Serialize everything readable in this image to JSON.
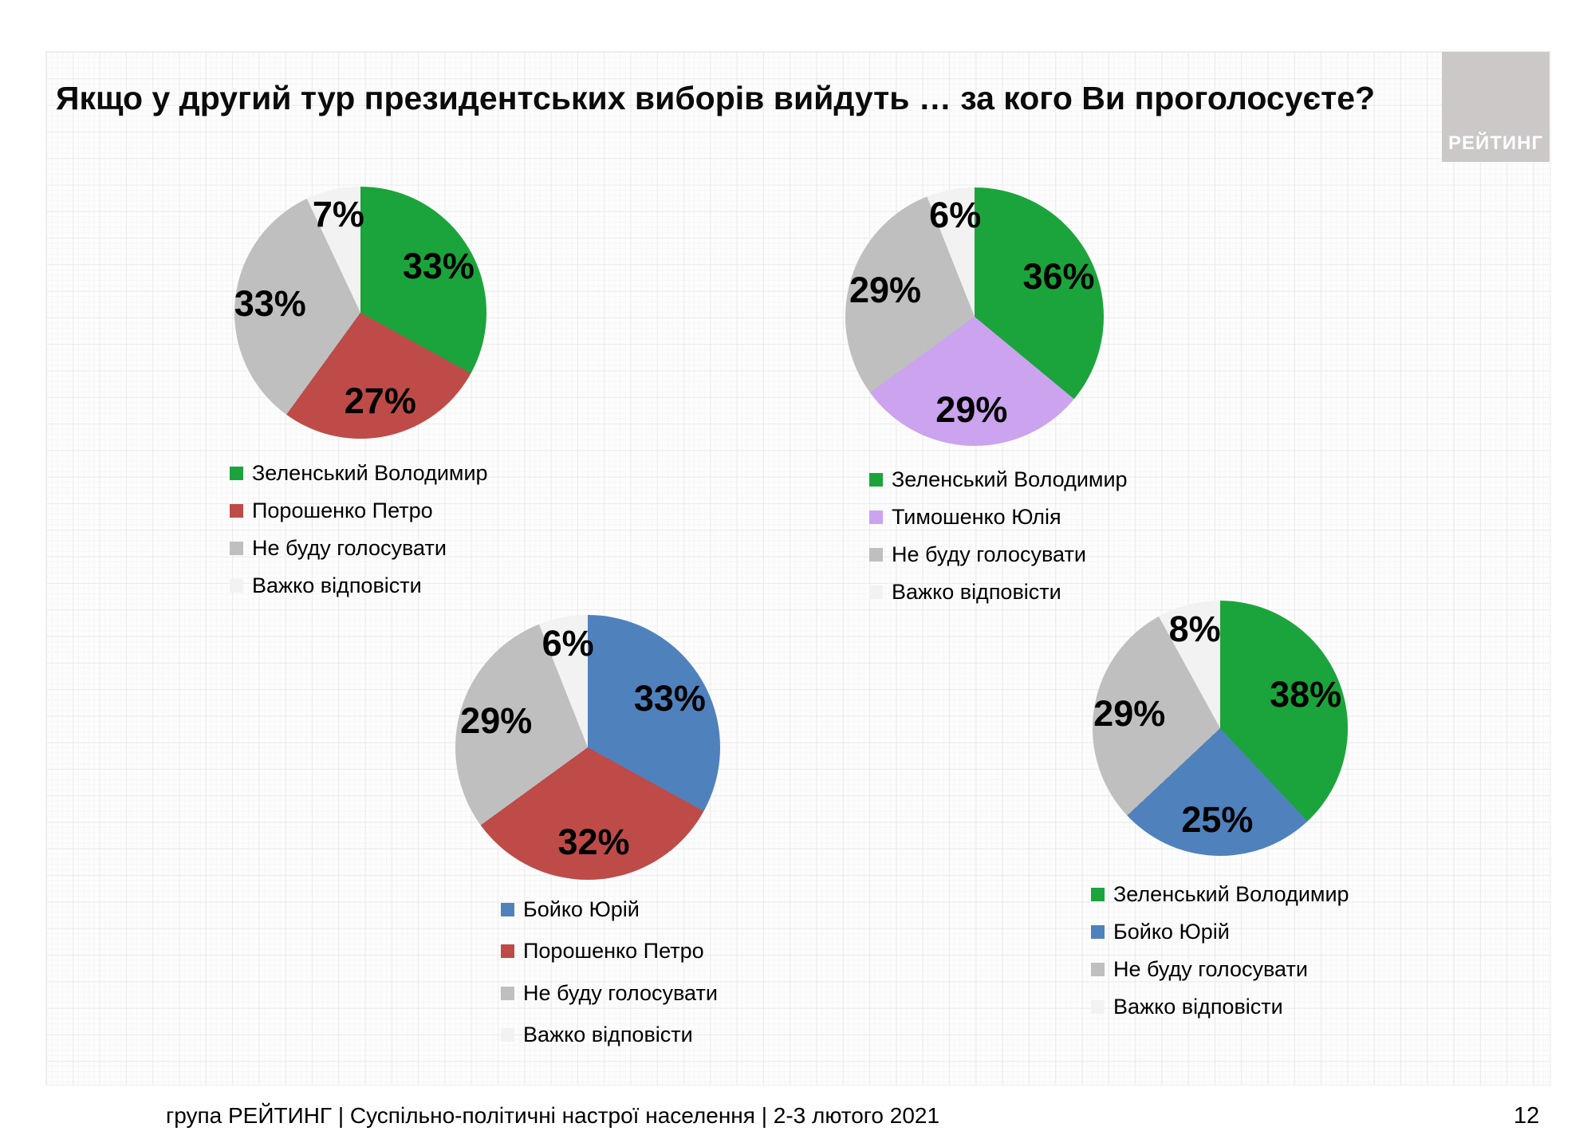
{
  "slide": {
    "title": "Якщо у другий тур президентських виборів вийдуть … за кого Ви проголосуєте?",
    "logo_text": "РЕЙТИНГ",
    "footer_text": "група РЕЙТИНГ | Суспільно-політичні настрої населення  | 2-3 лютого 2021",
    "page_number": "12"
  },
  "colors": {
    "green": "#1BA43B",
    "red": "#BE4B48",
    "gray": "#BFBFBF",
    "light_gray": "#F2F2F2",
    "blue": "#4F81BD",
    "purple": "#CBA3EF",
    "logo_bg": "#CBC8C7",
    "logo_text": "#FFFFFF"
  },
  "chart_data": [
    {
      "type": "pie",
      "slices": [
        {
          "label": "Зеленський Володимир",
          "value": 33,
          "color": "#1BA43B"
        },
        {
          "label": "Порошенко Петро",
          "value": 27,
          "color": "#BE4B48"
        },
        {
          "label": "Не буду голосувати",
          "value": 33,
          "color": "#BFBFBF"
        },
        {
          "label": "Важко відповісти",
          "value": 7,
          "color": "#F2F2F2"
        }
      ]
    },
    {
      "type": "pie",
      "slices": [
        {
          "label": "Зеленський Володимир",
          "value": 36,
          "color": "#1BA43B"
        },
        {
          "label": "Тимошенко Юлія",
          "value": 29,
          "color": "#CBA3EF"
        },
        {
          "label": "Не буду голосувати",
          "value": 29,
          "color": "#BFBFBF"
        },
        {
          "label": "Важко відповісти",
          "value": 6,
          "color": "#F2F2F2"
        }
      ]
    },
    {
      "type": "pie",
      "slices": [
        {
          "label": "Бойко Юрій",
          "value": 33,
          "color": "#4F81BD"
        },
        {
          "label": "Порошенко Петро",
          "value": 32,
          "color": "#BE4B48"
        },
        {
          "label": "Не буду голосувати",
          "value": 29,
          "color": "#BFBFBF"
        },
        {
          "label": "Важко відповісти",
          "value": 6,
          "color": "#F2F2F2"
        }
      ]
    },
    {
      "type": "pie",
      "slices": [
        {
          "label": "Зеленський Володимир",
          "value": 38,
          "color": "#1BA43B"
        },
        {
          "label": "Бойко Юрій",
          "value": 25,
          "color": "#4F81BD"
        },
        {
          "label": "Не буду голосувати",
          "value": 29,
          "color": "#BFBFBF"
        },
        {
          "label": "Важко відповісти",
          "value": 8,
          "color": "#F2F2F2"
        }
      ]
    }
  ]
}
